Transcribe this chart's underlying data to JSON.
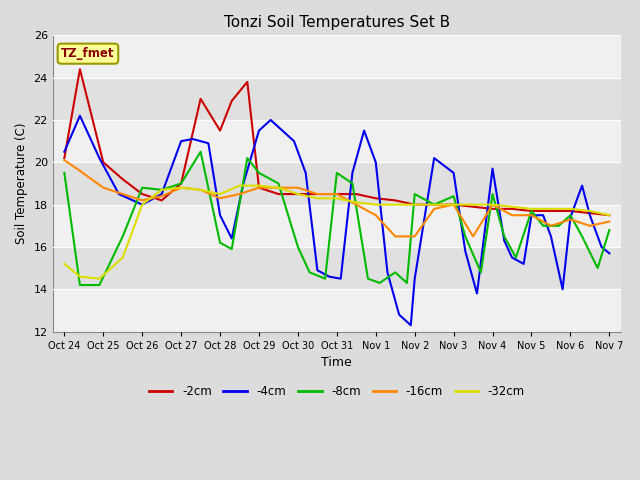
{
  "title": "Tonzi Soil Temperatures Set B",
  "xlabel": "Time",
  "ylabel": "Soil Temperature (C)",
  "ylim": [
    12,
    26
  ],
  "yticks": [
    12,
    14,
    16,
    18,
    20,
    22,
    24,
    26
  ],
  "x_labels": [
    "Oct 24",
    "Oct 25",
    "Oct 26",
    "Oct 27",
    "Oct 28",
    "Oct 29",
    "Oct 30",
    "Oct 31",
    "Nov 1",
    "Nov 2",
    "Nov 3",
    "Nov 4",
    "Nov 5",
    "Nov 6",
    "Nov 7"
  ],
  "annotation_text": "TZ_fmet",
  "annotation_color": "#8B0000",
  "annotation_bg": "#FFFF99",
  "annotation_border": "#999900",
  "fig_bg": "#DCDCDC",
  "band_colors": [
    "#F0F0F0",
    "#E0E0E0"
  ],
  "series": [
    {
      "label": "-2cm",
      "color": "#CC0000",
      "lw": 1.5,
      "x": [
        0,
        0.4,
        1,
        1.5,
        2,
        2.5,
        3,
        3.5,
        4,
        4.3,
        4.7,
        5,
        5.5,
        6,
        6.5,
        7,
        7.5,
        8,
        8.5,
        9,
        9.5,
        10,
        10.5,
        11,
        11.5,
        12,
        12.5,
        13,
        13.5,
        14
      ],
      "y": [
        20.2,
        24.4,
        20.0,
        19.2,
        18.5,
        18.2,
        19.0,
        23.0,
        21.5,
        22.9,
        23.8,
        18.8,
        18.5,
        18.5,
        18.5,
        18.5,
        18.5,
        18.3,
        18.2,
        18.0,
        18.0,
        18.0,
        17.9,
        17.8,
        17.8,
        17.7,
        17.7,
        17.7,
        17.6,
        17.5
      ]
    },
    {
      "label": "-4cm",
      "color": "#0000EE",
      "lw": 1.5,
      "x": [
        0,
        0.4,
        0.9,
        1.4,
        2,
        2.5,
        3,
        3.3,
        3.7,
        4,
        4.3,
        4.6,
        5,
        5.3,
        5.6,
        5.9,
        6.2,
        6.5,
        6.8,
        7.1,
        7.4,
        7.7,
        8.0,
        8.3,
        8.6,
        8.9,
        9,
        9.5,
        10,
        10.3,
        10.6,
        11,
        11.3,
        11.5,
        11.8,
        12,
        12.3,
        12.5,
        12.8,
        13,
        13.3,
        13.5,
        13.8,
        14
      ],
      "y": [
        20.5,
        22.2,
        20.2,
        18.5,
        18.0,
        18.5,
        21.0,
        21.1,
        20.9,
        17.5,
        16.4,
        19.0,
        21.5,
        22.0,
        21.5,
        21.0,
        19.5,
        14.9,
        14.6,
        14.5,
        19.5,
        21.5,
        20.0,
        14.8,
        12.8,
        12.3,
        14.5,
        20.2,
        19.5,
        15.8,
        13.8,
        19.7,
        16.3,
        15.5,
        15.2,
        17.5,
        17.5,
        16.5,
        14.0,
        17.4,
        18.9,
        17.5,
        16.0,
        15.7
      ]
    },
    {
      "label": "-8cm",
      "color": "#00BB00",
      "lw": 1.5,
      "x": [
        0,
        0.4,
        0.9,
        1.5,
        2,
        2.5,
        3,
        3.5,
        4,
        4.3,
        4.7,
        5,
        5.5,
        6,
        6.3,
        6.7,
        7,
        7.4,
        7.8,
        8.1,
        8.5,
        8.8,
        9,
        9.5,
        10,
        10.3,
        10.7,
        11,
        11.3,
        11.6,
        12,
        12.3,
        12.7,
        13,
        13.3,
        13.7,
        14
      ],
      "y": [
        19.5,
        14.2,
        14.2,
        16.5,
        18.8,
        18.7,
        19.0,
        20.5,
        16.2,
        15.9,
        20.2,
        19.5,
        19.0,
        16.0,
        14.8,
        14.5,
        19.5,
        19.0,
        14.5,
        14.3,
        14.8,
        14.3,
        18.5,
        18.0,
        18.4,
        16.5,
        14.8,
        18.5,
        16.5,
        15.5,
        17.7,
        17.0,
        17.0,
        17.5,
        16.5,
        15.0,
        16.8
      ]
    },
    {
      "label": "-16cm",
      "color": "#FF8800",
      "lw": 1.5,
      "x": [
        0,
        0.4,
        1,
        1.5,
        2,
        2.5,
        3,
        3.5,
        4,
        4.5,
        5,
        5.5,
        6,
        6.5,
        7,
        7.5,
        8,
        8.5,
        9,
        9.5,
        10,
        10.5,
        11,
        11.5,
        12,
        12.5,
        13,
        13.5,
        14
      ],
      "y": [
        20.1,
        19.6,
        18.8,
        18.5,
        18.2,
        18.4,
        18.8,
        18.7,
        18.3,
        18.5,
        18.8,
        18.8,
        18.8,
        18.5,
        18.5,
        18.0,
        17.5,
        16.5,
        16.5,
        17.8,
        18.0,
        16.5,
        18.0,
        17.5,
        17.5,
        17.0,
        17.3,
        17.0,
        17.2
      ]
    },
    {
      "label": "-32cm",
      "color": "#DDDD00",
      "lw": 1.5,
      "x": [
        0,
        0.4,
        0.9,
        1.5,
        2,
        2.5,
        3,
        3.5,
        4,
        4.5,
        5,
        5.5,
        6,
        6.5,
        7,
        7.5,
        8,
        8.5,
        9,
        9.5,
        10,
        10.5,
        11,
        11.5,
        12,
        12.5,
        13,
        13.5,
        14
      ],
      "y": [
        15.2,
        14.6,
        14.5,
        15.5,
        18.0,
        18.7,
        18.8,
        18.7,
        18.5,
        18.9,
        18.9,
        18.8,
        18.5,
        18.3,
        18.3,
        18.1,
        18.0,
        18.0,
        18.0,
        18.0,
        18.0,
        18.0,
        18.0,
        17.9,
        17.8,
        17.8,
        17.8,
        17.7,
        17.5
      ]
    }
  ],
  "legend": [
    {
      "label": "-2cm",
      "color": "#CC0000"
    },
    {
      "label": "-4cm",
      "color": "#0000EE"
    },
    {
      "label": "-8cm",
      "color": "#00BB00"
    },
    {
      "label": "-16cm",
      "color": "#FF8800"
    },
    {
      "label": "-32cm",
      "color": "#DDDD00"
    }
  ]
}
